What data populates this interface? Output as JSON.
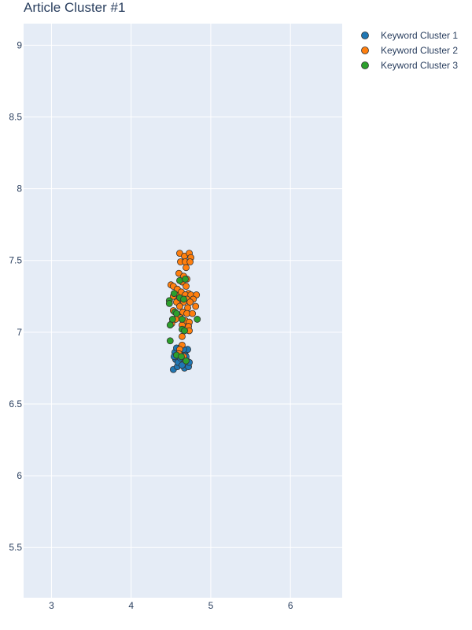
{
  "chart_data": {
    "type": "scatter",
    "title": "Article Cluster #1",
    "xlabel": "",
    "ylabel": "",
    "xlim": [
      2.65,
      6.65
    ],
    "ylim": [
      5.15,
      9.15
    ],
    "x_ticks": [
      "3",
      "4",
      "5",
      "6"
    ],
    "y_ticks": [
      "5.5",
      "6",
      "6.5",
      "7",
      "7.5",
      "8",
      "8.5",
      "9"
    ],
    "grid": true,
    "legend_position": "top-right",
    "plot_background": "#e5ecf6",
    "marker_outline": "#333333",
    "series": [
      {
        "name": "Keyword Cluster 1",
        "color": "#1f77b4",
        "points": [
          [
            4.53,
            6.74
          ],
          [
            4.58,
            6.76
          ],
          [
            4.62,
            6.79
          ],
          [
            4.67,
            6.75
          ],
          [
            4.72,
            6.76
          ],
          [
            4.56,
            6.81
          ],
          [
            4.61,
            6.84
          ],
          [
            4.66,
            6.82
          ],
          [
            4.7,
            6.8
          ],
          [
            4.55,
            6.86
          ],
          [
            4.6,
            6.88
          ],
          [
            4.65,
            6.86
          ],
          [
            4.71,
            6.88
          ],
          [
            4.57,
            6.89
          ],
          [
            4.63,
            6.9
          ],
          [
            4.68,
            6.84
          ],
          [
            4.59,
            6.79
          ],
          [
            4.64,
            6.77
          ],
          [
            4.69,
            6.83
          ],
          [
            4.73,
            6.79
          ],
          [
            4.54,
            6.83
          ],
          [
            4.62,
            6.82
          ],
          [
            4.66,
            6.88
          ]
        ]
      },
      {
        "name": "Keyword Cluster 2",
        "color": "#ff7f0e",
        "points": [
          [
            4.61,
            7.55
          ],
          [
            4.67,
            7.53
          ],
          [
            4.73,
            7.55
          ],
          [
            4.75,
            7.52
          ],
          [
            4.62,
            7.49
          ],
          [
            4.68,
            7.49
          ],
          [
            4.74,
            7.49
          ],
          [
            4.69,
            7.45
          ],
          [
            4.6,
            7.41
          ],
          [
            4.66,
            7.39
          ],
          [
            4.7,
            7.37
          ],
          [
            4.64,
            7.35
          ],
          [
            4.5,
            7.33
          ],
          [
            4.53,
            7.32
          ],
          [
            4.58,
            7.3
          ],
          [
            4.69,
            7.32
          ],
          [
            4.72,
            7.27
          ],
          [
            4.63,
            7.28
          ],
          [
            4.56,
            7.26
          ],
          [
            4.68,
            7.26
          ],
          [
            4.75,
            7.26
          ],
          [
            4.82,
            7.26
          ],
          [
            4.53,
            7.25
          ],
          [
            4.62,
            7.23
          ],
          [
            4.7,
            7.23
          ],
          [
            4.78,
            7.23
          ],
          [
            4.57,
            7.21
          ],
          [
            4.66,
            7.21
          ],
          [
            4.74,
            7.21
          ],
          [
            4.61,
            7.18
          ],
          [
            4.71,
            7.17
          ],
          [
            4.81,
            7.18
          ],
          [
            4.53,
            7.15
          ],
          [
            4.65,
            7.14
          ],
          [
            4.58,
            7.12
          ],
          [
            4.7,
            7.13
          ],
          [
            4.77,
            7.13
          ],
          [
            4.62,
            7.1
          ],
          [
            4.56,
            7.09
          ],
          [
            4.68,
            7.08
          ],
          [
            4.73,
            7.07
          ],
          [
            4.51,
            7.06
          ],
          [
            4.64,
            7.05
          ],
          [
            4.72,
            7.04
          ],
          [
            4.73,
            7.01
          ],
          [
            4.64,
            6.97
          ],
          [
            4.64,
            6.91
          ],
          [
            4.61,
            6.88
          ],
          [
            4.6,
            6.85
          ],
          [
            4.66,
            6.83
          ]
        ]
      },
      {
        "name": "Keyword Cluster 3",
        "color": "#2ca02c",
        "points": [
          [
            4.61,
            7.36
          ],
          [
            4.68,
            7.37
          ],
          [
            4.54,
            7.27
          ],
          [
            4.61,
            7.24
          ],
          [
            4.66,
            7.23
          ],
          [
            4.48,
            7.22
          ],
          [
            4.48,
            7.2
          ],
          [
            4.55,
            7.14
          ],
          [
            4.57,
            7.13
          ],
          [
            4.52,
            7.09
          ],
          [
            4.64,
            7.09
          ],
          [
            4.83,
            7.09
          ],
          [
            4.49,
            7.05
          ],
          [
            4.64,
            7.02
          ],
          [
            4.67,
            7.01
          ],
          [
            4.49,
            6.94
          ],
          [
            4.57,
            6.84
          ],
          [
            4.63,
            6.83
          ],
          [
            4.69,
            6.8
          ]
        ]
      }
    ]
  }
}
